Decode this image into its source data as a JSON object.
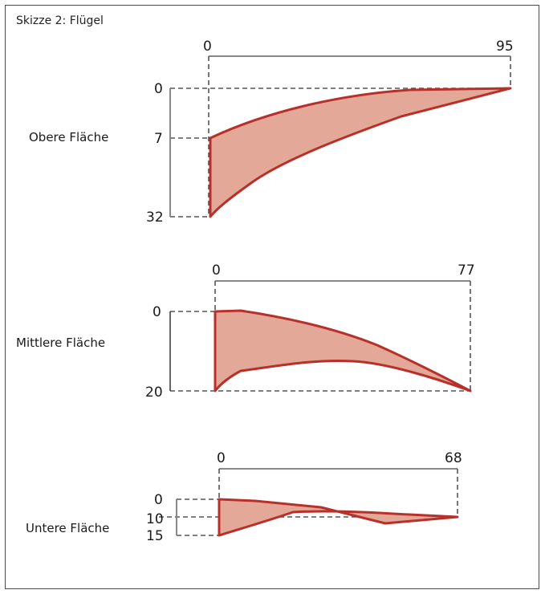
{
  "title": "Skizze 2: Flügel",
  "colors": {
    "shape_fill": "#e3a898",
    "shape_stroke": "#b8302a",
    "frame": "#4a4a4a"
  },
  "panels": [
    {
      "label": "Obere Fläche",
      "x_start": "0",
      "x_end": "95",
      "y_values": [
        "0",
        "7",
        "32"
      ]
    },
    {
      "label": "Mittlere Fläche",
      "x_start": "0",
      "x_end": "77",
      "y_values": [
        "0",
        "20"
      ]
    },
    {
      "label": "Untere Fläche",
      "x_start": "0",
      "x_end": "68",
      "y_values": [
        "0",
        "10",
        "15"
      ]
    }
  ]
}
